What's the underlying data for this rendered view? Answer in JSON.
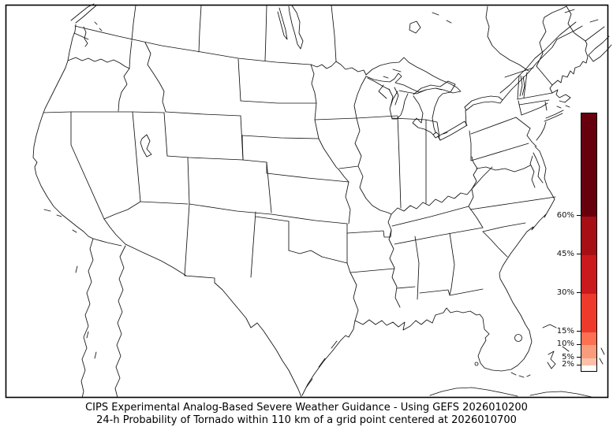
{
  "figure": {
    "background": "#ffffff",
    "frame_color": "#000000",
    "line_color": "#111111"
  },
  "title": {
    "line1": "CIPS Experimental Analog-Based Severe Weather Guidance - Using GEFS 2026010200",
    "line2": "24-h Probability of Tornado within 110 km of a grid point centered at 2026010700"
  },
  "colorbar": {
    "orientation": "vertical",
    "range_min": 0,
    "range_max": 100,
    "tick_values": [
      2,
      5,
      10,
      15,
      30,
      45,
      60
    ],
    "tick_labels": [
      "2%",
      "5%",
      "10%",
      "15%",
      "30%",
      "45%",
      "60%"
    ],
    "segments": [
      {
        "from": 0,
        "to": 2,
        "color": "#ffffff"
      },
      {
        "from": 2,
        "to": 5,
        "color": "#fcc0a8"
      },
      {
        "from": 5,
        "to": 10,
        "color": "#f99c7c"
      },
      {
        "from": 10,
        "to": 15,
        "color": "#fb7152"
      },
      {
        "from": 15,
        "to": 30,
        "color": "#ee3a2c"
      },
      {
        "from": 30,
        "to": 45,
        "color": "#cb1a1d"
      },
      {
        "from": 45,
        "to": 60,
        "color": "#a50f15"
      },
      {
        "from": 60,
        "to": 100,
        "color": "#67000d"
      }
    ]
  },
  "map": {
    "region_shown": "Contiguous United States with state borders, southern Canada and northern Mexico",
    "shaded_probability_areas": "none"
  }
}
